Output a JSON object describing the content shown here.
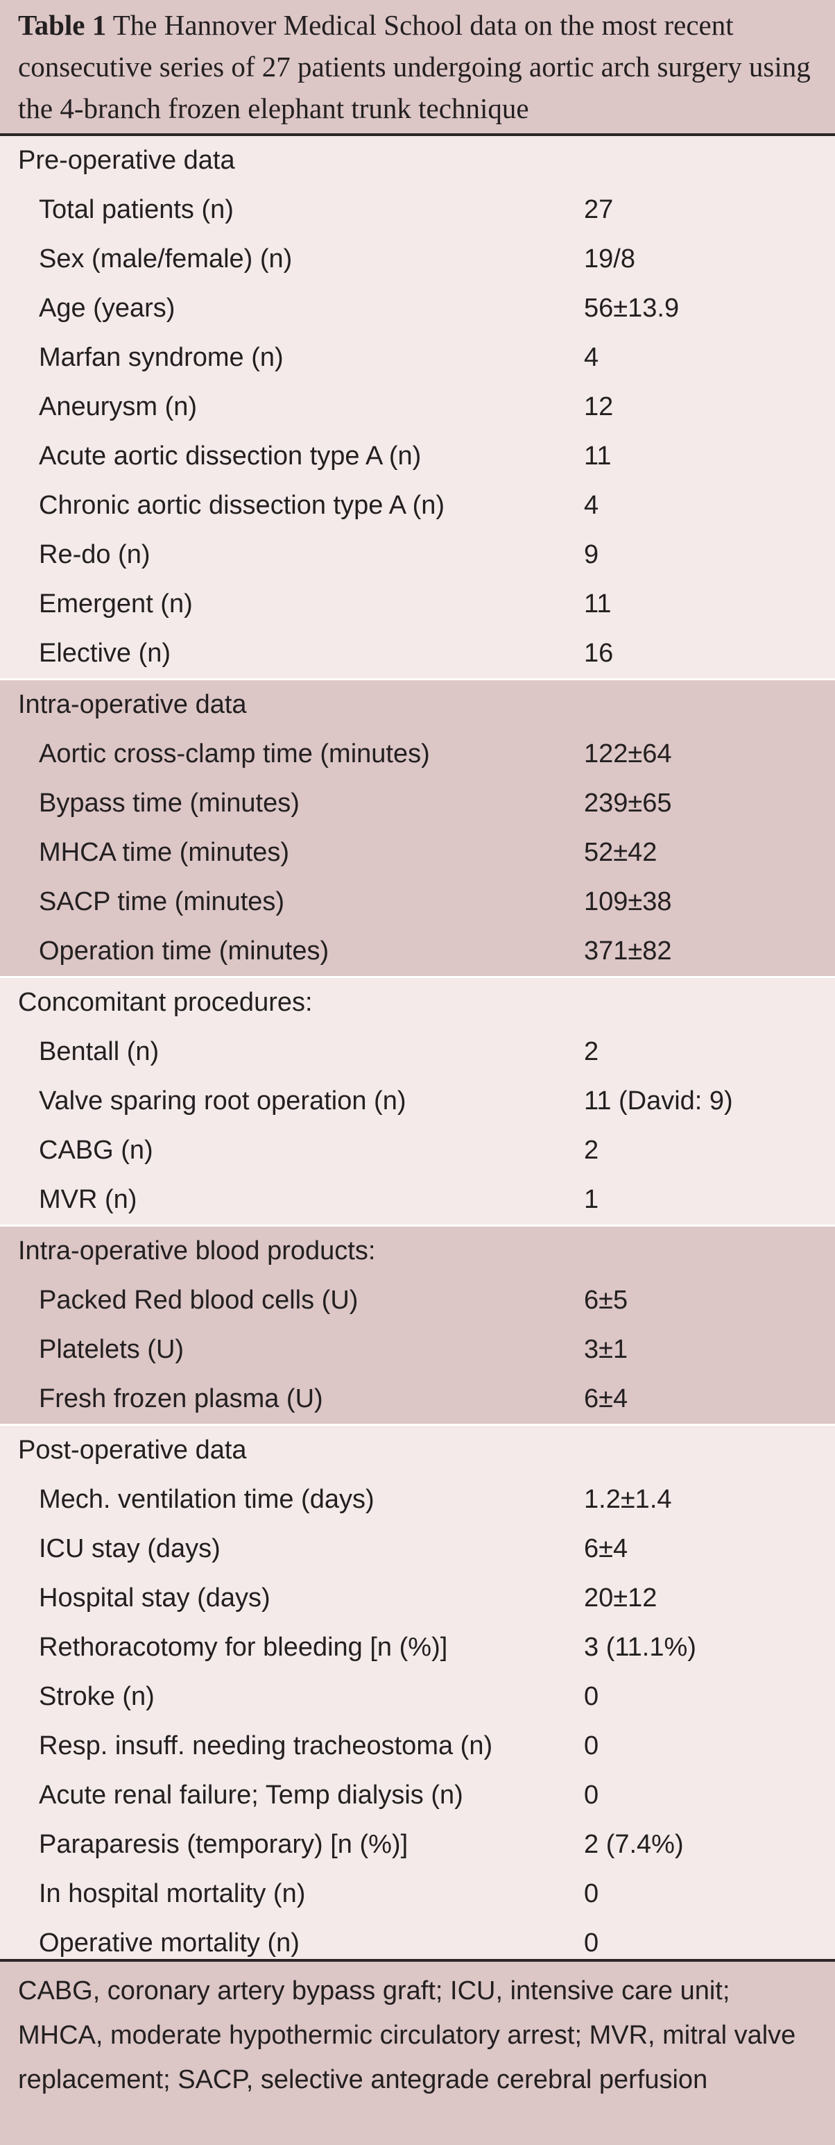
{
  "caption": {
    "label": "Table 1",
    "text": "The Hannover Medical School data on the most recent consecutive series of 27 patients undergoing aortic arch surgery using the 4-branch frozen elephant trunk technique"
  },
  "sections": [
    {
      "header": "Pre-operative data",
      "rows": [
        {
          "name": "Total patients (n)",
          "value": "27"
        },
        {
          "name": "Sex (male/female) (n)",
          "value": "19/8"
        },
        {
          "name": "Age (years)",
          "value": "56±13.9"
        },
        {
          "name": "Marfan syndrome (n)",
          "value": "4"
        },
        {
          "name": "Aneurysm (n)",
          "value": "12"
        },
        {
          "name": "Acute aortic dissection type A (n)",
          "value": "11"
        },
        {
          "name": "Chronic aortic dissection type A (n)",
          "value": "4"
        },
        {
          "name": "Re-do (n)",
          "value": "9"
        },
        {
          "name": "Emergent (n)",
          "value": "11"
        },
        {
          "name": "Elective (n)",
          "value": "16"
        }
      ]
    },
    {
      "header": "Intra-operative data",
      "rows": [
        {
          "name": "Aortic cross-clamp time (minutes)",
          "value": "122±64"
        },
        {
          "name": "Bypass time (minutes)",
          "value": "239±65"
        },
        {
          "name": "MHCA time (minutes)",
          "value": "52±42"
        },
        {
          "name": "SACP time (minutes)",
          "value": "109±38"
        },
        {
          "name": "Operation time (minutes)",
          "value": "371±82"
        }
      ]
    },
    {
      "header": "Concomitant procedures:",
      "rows": [
        {
          "name": "Bentall (n)",
          "value": "2"
        },
        {
          "name": "Valve sparing root operation (n)",
          "value": "11 (David: 9)"
        },
        {
          "name": "CABG (n)",
          "value": "2"
        },
        {
          "name": "MVR (n)",
          "value": "1"
        }
      ]
    },
    {
      "header": "Intra-operative blood products:",
      "rows": [
        {
          "name": "Packed Red blood cells (U)",
          "value": "6±5"
        },
        {
          "name": "Platelets (U)",
          "value": "3±1"
        },
        {
          "name": "Fresh frozen plasma (U)",
          "value": "6±4"
        }
      ]
    },
    {
      "header": "Post-operative data",
      "rows": [
        {
          "name": "Mech. ventilation time (days)",
          "value": "1.2±1.4"
        },
        {
          "name": "ICU stay (days)",
          "value": "6±4"
        },
        {
          "name": "Hospital stay (days)",
          "value": "20±12"
        },
        {
          "name": "Rethoracotomy for bleeding [n (%)]",
          "value": "3 (11.1%)"
        },
        {
          "name": "Stroke (n)",
          "value": "0"
        },
        {
          "name": "Resp. insuff. needing tracheostoma (n)",
          "value": "0"
        },
        {
          "name": "Acute renal failure; Temp dialysis (n)",
          "value": "0"
        },
        {
          "name": "Paraparesis (temporary) [n (%)]",
          "value": "2 (7.4%)"
        },
        {
          "name": "In hospital mortality (n)",
          "value": "0"
        },
        {
          "name": "Operative mortality (n)",
          "value": "0"
        }
      ]
    }
  ],
  "footnote": "CABG, coronary artery bypass graft; ICU, intensive care unit; MHCA, moderate hypothermic circulatory arrest; MVR, mitral valve replacement; SACP, selective antegrade cerebral perfusion"
}
